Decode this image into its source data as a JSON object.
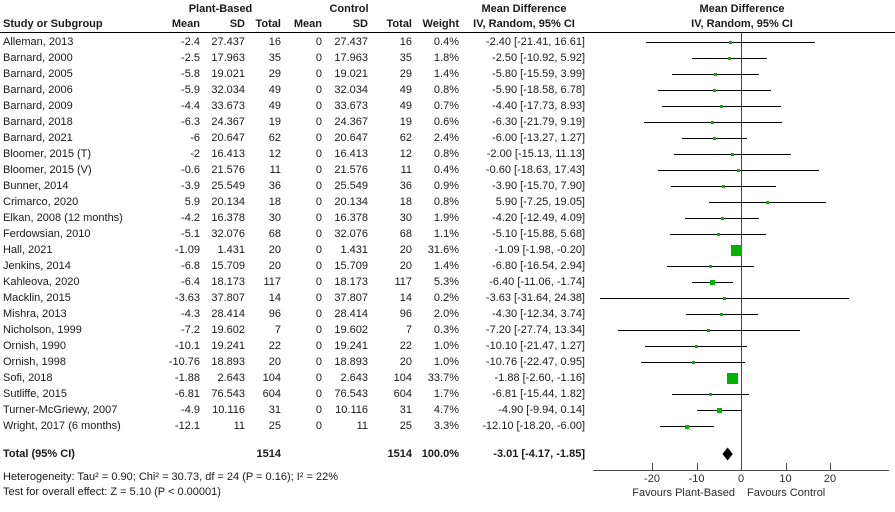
{
  "header": {
    "study_col": "Study or Subgroup",
    "group1": "Plant-Based",
    "group2": "Control",
    "mean": "Mean",
    "sd": "SD",
    "total": "Total",
    "weight": "Weight",
    "md_title": "Mean Difference",
    "md_subtitle": "IV, Random, 95% CI"
  },
  "chart_data": {
    "type": "scatter",
    "subtype": "forest-plot",
    "effect_measure": "Mean Difference, IV, Random, 95% CI",
    "axis": {
      "ticks": [
        -20,
        -10,
        0,
        10,
        20
      ],
      "min": -33,
      "max": 33,
      "favours_left": "Favours Plant-Based",
      "favours_right": "Favours Control"
    },
    "studies": [
      {
        "name": "Alleman, 2013",
        "mean1": "-2.4",
        "sd1": "27.437",
        "n1": "16",
        "mean2": "0",
        "sd2": "27.437",
        "n2": "16",
        "weight": "0.4%",
        "w": 0.4,
        "md": -2.4,
        "lo": -21.41,
        "hi": 16.61,
        "md_text": "-2.40 [-21.41, 16.61]"
      },
      {
        "name": "Barnard, 2000",
        "mean1": "-2.5",
        "sd1": "17.963",
        "n1": "35",
        "mean2": "0",
        "sd2": "17.963",
        "n2": "35",
        "weight": "1.8%",
        "w": 1.8,
        "md": -2.5,
        "lo": -10.92,
        "hi": 5.92,
        "md_text": "-2.50 [-10.92, 5.92]"
      },
      {
        "name": "Barnard, 2005",
        "mean1": "-5.8",
        "sd1": "19.021",
        "n1": "29",
        "mean2": "0",
        "sd2": "19.021",
        "n2": "29",
        "weight": "1.4%",
        "w": 1.4,
        "md": -5.8,
        "lo": -15.59,
        "hi": 3.99,
        "md_text": "-5.80 [-15.59, 3.99]"
      },
      {
        "name": "Barnard, 2006",
        "mean1": "-5.9",
        "sd1": "32.034",
        "n1": "49",
        "mean2": "0",
        "sd2": "32.034",
        "n2": "49",
        "weight": "0.8%",
        "w": 0.8,
        "md": -5.9,
        "lo": -18.58,
        "hi": 6.78,
        "md_text": "-5.90 [-18.58, 6.78]"
      },
      {
        "name": "Barnard, 2009",
        "mean1": "-4.4",
        "sd1": "33.673",
        "n1": "49",
        "mean2": "0",
        "sd2": "33.673",
        "n2": "49",
        "weight": "0.7%",
        "w": 0.7,
        "md": -4.4,
        "lo": -17.73,
        "hi": 8.93,
        "md_text": "-4.40 [-17.73, 8.93]"
      },
      {
        "name": "Barnard, 2018",
        "mean1": "-6.3",
        "sd1": "24.367",
        "n1": "19",
        "mean2": "0",
        "sd2": "24.367",
        "n2": "19",
        "weight": "0.6%",
        "w": 0.6,
        "md": -6.3,
        "lo": -21.79,
        "hi": 9.19,
        "md_text": "-6.30 [-21.79, 9.19]"
      },
      {
        "name": "Barnard, 2021",
        "mean1": "-6",
        "sd1": "20.647",
        "n1": "62",
        "mean2": "0",
        "sd2": "20.647",
        "n2": "62",
        "weight": "2.4%",
        "w": 2.4,
        "md": -6.0,
        "lo": -13.27,
        "hi": 1.27,
        "md_text": "-6.00 [-13.27, 1.27]"
      },
      {
        "name": "Bloomer, 2015 (T)",
        "mean1": "-2",
        "sd1": "16.413",
        "n1": "12",
        "mean2": "0",
        "sd2": "16.413",
        "n2": "12",
        "weight": "0.8%",
        "w": 0.8,
        "md": -2.0,
        "lo": -15.13,
        "hi": 11.13,
        "md_text": "-2.00 [-15.13, 11.13]"
      },
      {
        "name": "Bloomer, 2015 (V)",
        "mean1": "-0.6",
        "sd1": "21.576",
        "n1": "11",
        "mean2": "0",
        "sd2": "21.576",
        "n2": "11",
        "weight": "0.4%",
        "w": 0.4,
        "md": -0.6,
        "lo": -18.63,
        "hi": 17.43,
        "md_text": "-0.60 [-18.63, 17.43]"
      },
      {
        "name": "Bunner, 2014",
        "mean1": "-3.9",
        "sd1": "25.549",
        "n1": "36",
        "mean2": "0",
        "sd2": "25.549",
        "n2": "36",
        "weight": "0.9%",
        "w": 0.9,
        "md": -3.9,
        "lo": -15.7,
        "hi": 7.9,
        "md_text": "-3.90 [-15.70, 7.90]"
      },
      {
        "name": "Crimarco, 2020",
        "mean1": "5.9",
        "sd1": "20.134",
        "n1": "18",
        "mean2": "0",
        "sd2": "20.134",
        "n2": "18",
        "weight": "0.8%",
        "w": 0.8,
        "md": 5.9,
        "lo": -7.25,
        "hi": 19.05,
        "md_text": "5.90 [-7.25, 19.05]"
      },
      {
        "name": "Elkan, 2008 (12 months)",
        "mean1": "-4.2",
        "sd1": "16.378",
        "n1": "30",
        "mean2": "0",
        "sd2": "16.378",
        "n2": "30",
        "weight": "1.9%",
        "w": 1.9,
        "md": -4.2,
        "lo": -12.49,
        "hi": 4.09,
        "md_text": "-4.20 [-12.49, 4.09]"
      },
      {
        "name": "Ferdowsian, 2010",
        "mean1": "-5.1",
        "sd1": "32.076",
        "n1": "68",
        "mean2": "0",
        "sd2": "32.076",
        "n2": "68",
        "weight": "1.1%",
        "w": 1.1,
        "md": -5.1,
        "lo": -15.88,
        "hi": 5.68,
        "md_text": "-5.10 [-15.88, 5.68]"
      },
      {
        "name": "Hall, 2021",
        "mean1": "-1.09",
        "sd1": "1.431",
        "n1": "20",
        "mean2": "0",
        "sd2": "1.431",
        "n2": "20",
        "weight": "31.6%",
        "w": 31.6,
        "md": -1.09,
        "lo": -1.98,
        "hi": -0.2,
        "md_text": "-1.09 [-1.98, -0.20]"
      },
      {
        "name": "Jenkins, 2014",
        "mean1": "-6.8",
        "sd1": "15.709",
        "n1": "20",
        "mean2": "0",
        "sd2": "15.709",
        "n2": "20",
        "weight": "1.4%",
        "w": 1.4,
        "md": -6.8,
        "lo": -16.54,
        "hi": 2.94,
        "md_text": "-6.80 [-16.54, 2.94]"
      },
      {
        "name": "Kahleova, 2020",
        "mean1": "-6.4",
        "sd1": "18.173",
        "n1": "117",
        "mean2": "0",
        "sd2": "18.173",
        "n2": "117",
        "weight": "5.3%",
        "w": 5.3,
        "md": -6.4,
        "lo": -11.06,
        "hi": -1.74,
        "md_text": "-6.40 [-11.06, -1.74]"
      },
      {
        "name": "Macklin, 2015",
        "mean1": "-3.63",
        "sd1": "37.807",
        "n1": "14",
        "mean2": "0",
        "sd2": "37.807",
        "n2": "14",
        "weight": "0.2%",
        "w": 0.2,
        "md": -3.63,
        "lo": -31.64,
        "hi": 24.38,
        "md_text": "-3.63 [-31.64, 24.38]"
      },
      {
        "name": "Mishra, 2013",
        "mean1": "-4.3",
        "sd1": "28.414",
        "n1": "96",
        "mean2": "0",
        "sd2": "28.414",
        "n2": "96",
        "weight": "2.0%",
        "w": 2.0,
        "md": -4.3,
        "lo": -12.34,
        "hi": 3.74,
        "md_text": "-4.30 [-12.34, 3.74]"
      },
      {
        "name": "Nicholson, 1999",
        "mean1": "-7.2",
        "sd1": "19.602",
        "n1": "7",
        "mean2": "0",
        "sd2": "19.602",
        "n2": "7",
        "weight": "0.3%",
        "w": 0.3,
        "md": -7.2,
        "lo": -27.74,
        "hi": 13.34,
        "md_text": "-7.20 [-27.74, 13.34]"
      },
      {
        "name": "Ornish, 1990",
        "mean1": "-10.1",
        "sd1": "19.241",
        "n1": "22",
        "mean2": "0",
        "sd2": "19.241",
        "n2": "22",
        "weight": "1.0%",
        "w": 1.0,
        "md": -10.1,
        "lo": -21.47,
        "hi": 1.27,
        "md_text": "-10.10 [-21.47, 1.27]"
      },
      {
        "name": "Ornish, 1998",
        "mean1": "-10.76",
        "sd1": "18.893",
        "n1": "20",
        "mean2": "0",
        "sd2": "18.893",
        "n2": "20",
        "weight": "1.0%",
        "w": 1.0,
        "md": -10.76,
        "lo": -22.47,
        "hi": 0.95,
        "md_text": "-10.76 [-22.47, 0.95]"
      },
      {
        "name": "Sofi, 2018",
        "mean1": "-1.88",
        "sd1": "2.643",
        "n1": "104",
        "mean2": "0",
        "sd2": "2.643",
        "n2": "104",
        "weight": "33.7%",
        "w": 33.7,
        "md": -1.88,
        "lo": -2.6,
        "hi": -1.16,
        "md_text": "-1.88 [-2.60, -1.16]"
      },
      {
        "name": "Sutliffe, 2015",
        "mean1": "-6.81",
        "sd1": "76.543",
        "n1": "604",
        "mean2": "0",
        "sd2": "76.543",
        "n2": "604",
        "weight": "1.7%",
        "w": 1.7,
        "md": -6.81,
        "lo": -15.44,
        "hi": 1.82,
        "md_text": "-6.81 [-15.44, 1.82]"
      },
      {
        "name": "Turner-McGriewy, 2007",
        "mean1": "-4.9",
        "sd1": "10.116",
        "n1": "31",
        "mean2": "0",
        "sd2": "10.116",
        "n2": "31",
        "weight": "4.7%",
        "w": 4.7,
        "md": -4.9,
        "lo": -9.94,
        "hi": 0.14,
        "md_text": "-4.90 [-9.94, 0.14]"
      },
      {
        "name": "Wright, 2017 (6 months)",
        "mean1": "-12.1",
        "sd1": "11",
        "n1": "25",
        "mean2": "0",
        "sd2": "11",
        "n2": "25",
        "weight": "3.3%",
        "w": 3.3,
        "md": -12.1,
        "lo": -18.2,
        "hi": -6.0,
        "md_text": "-12.10 [-18.20, -6.00]"
      }
    ],
    "total": {
      "label": "Total (95% CI)",
      "n1": "1514",
      "n2": "1514",
      "weight": "100.0%",
      "md": -3.01,
      "lo": -4.17,
      "hi": -1.85,
      "md_text": "-3.01 [-4.17, -1.85]"
    },
    "heterogeneity": "Heterogeneity: Tau² = 0.90; Chi² = 30.73, df = 24 (P = 0.16); I² = 22%",
    "overall_effect": "Test for overall effect: Z = 5.10 (P < 0.00001)"
  },
  "colors": {
    "square": "#00b300",
    "diamond": "#000000",
    "line": "#000000",
    "axis": "#4a4a4a"
  }
}
